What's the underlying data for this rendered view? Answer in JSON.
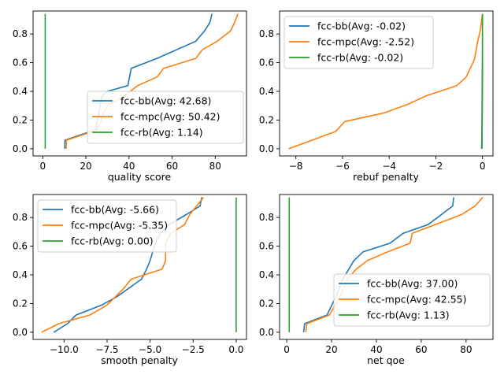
{
  "chart_data": [
    {
      "type": "line",
      "xlabel": "quality score",
      "xlim": [
        -4.5,
        94.5
      ],
      "ylim": [
        -0.05,
        0.96
      ],
      "xticks": [
        {
          "v": 0,
          "label": "0"
        },
        {
          "v": 20,
          "label": "20"
        },
        {
          "v": 40,
          "label": "40"
        },
        {
          "v": 60,
          "label": "60"
        },
        {
          "v": 80,
          "label": "80"
        }
      ],
      "yticks": [
        {
          "v": 0.0,
          "label": "0.0"
        },
        {
          "v": 0.2,
          "label": "0.2"
        },
        {
          "v": 0.4,
          "label": "0.4"
        },
        {
          "v": 0.6,
          "label": "0.6"
        },
        {
          "v": 0.8,
          "label": "0.8"
        }
      ],
      "legend": "lower-right",
      "series": [
        {
          "name": "fcc-bb(Avg: 42.68)",
          "color": "#1f77b4",
          "points": [
            [
              10.2,
              0.0
            ],
            [
              10.3,
              0.06
            ],
            [
              20,
              0.11
            ],
            [
              24.5,
              0.13
            ],
            [
              26,
              0.25
            ],
            [
              27.5,
              0.37
            ],
            [
              30,
              0.4
            ],
            [
              39.5,
              0.44
            ],
            [
              41,
              0.56
            ],
            [
              53,
              0.63
            ],
            [
              71,
              0.75
            ],
            [
              75,
              0.82
            ],
            [
              77.5,
              0.88
            ],
            [
              78.5,
              0.94
            ]
          ]
        },
        {
          "name": "fcc-mpc(Avg: 50.42)",
          "color": "#ff7f0e",
          "points": [
            [
              10.8,
              0.0
            ],
            [
              11,
              0.06
            ],
            [
              21,
              0.11
            ],
            [
              25,
              0.13
            ],
            [
              27,
              0.19
            ],
            [
              28,
              0.25
            ],
            [
              31,
              0.31
            ],
            [
              38,
              0.37
            ],
            [
              44,
              0.44
            ],
            [
              53,
              0.5
            ],
            [
              56,
              0.56
            ],
            [
              71,
              0.63
            ],
            [
              74,
              0.69
            ],
            [
              81,
              0.75
            ],
            [
              87,
              0.82
            ],
            [
              89,
              0.88
            ],
            [
              90.5,
              0.94
            ]
          ]
        },
        {
          "name": "fcc-rb(Avg: 1.14)",
          "color": "#2ca02c",
          "points": [
            [
              1.14,
              0.0
            ],
            [
              1.14,
              0.94
            ]
          ]
        }
      ]
    },
    {
      "type": "line",
      "xlabel": "rebuf penalty",
      "xlim": [
        -8.7,
        0.45
      ],
      "ylim": [
        -0.05,
        0.96
      ],
      "xticks": [
        {
          "v": -8,
          "label": "−8"
        },
        {
          "v": -6,
          "label": "−6"
        },
        {
          "v": -4,
          "label": "−4"
        },
        {
          "v": -2,
          "label": "−2"
        },
        {
          "v": 0,
          "label": "0"
        }
      ],
      "yticks": [
        {
          "v": 0.0,
          "label": "0.0"
        },
        {
          "v": 0.2,
          "label": "0.2"
        },
        {
          "v": 0.4,
          "label": "0.4"
        },
        {
          "v": 0.6,
          "label": "0.6"
        },
        {
          "v": 0.8,
          "label": "0.8"
        }
      ],
      "legend": "upper-left",
      "series": [
        {
          "name": "fcc-bb(Avg: -0.02)",
          "color": "#1f77b4",
          "points": [
            [
              -0.04,
              0.0
            ],
            [
              -0.03,
              0.06
            ],
            [
              -0.02,
              0.25
            ],
            [
              -0.01,
              0.5
            ],
            [
              0.0,
              0.75
            ],
            [
              0.0,
              0.94
            ]
          ]
        },
        {
          "name": "fcc-mpc(Avg: -2.52)",
          "color": "#ff7f0e",
          "points": [
            [
              -8.3,
              0.0
            ],
            [
              -6.3,
              0.12
            ],
            [
              -5.9,
              0.19
            ],
            [
              -4.2,
              0.25
            ],
            [
              -3.2,
              0.31
            ],
            [
              -2.4,
              0.37
            ],
            [
              -1.1,
              0.44
            ],
            [
              -0.7,
              0.5
            ],
            [
              -0.35,
              0.62
            ],
            [
              -0.2,
              0.75
            ],
            [
              -0.1,
              0.82
            ],
            [
              -0.05,
              0.88
            ],
            [
              0.0,
              0.94
            ]
          ]
        },
        {
          "name": "fcc-rb(Avg: -0.02)",
          "color": "#2ca02c",
          "points": [
            [
              -0.02,
              0.0
            ],
            [
              -0.02,
              0.06
            ],
            [
              -0.01,
              0.25
            ],
            [
              0.0,
              0.5
            ],
            [
              0.0,
              0.94
            ]
          ]
        }
      ]
    },
    {
      "type": "line",
      "xlabel": "smooth penalty",
      "xlim": [
        -11.8,
        0.6
      ],
      "ylim": [
        -0.05,
        0.96
      ],
      "xticks": [
        {
          "v": -10,
          "label": "−10.0"
        },
        {
          "v": -7.5,
          "label": "−7.5"
        },
        {
          "v": -5,
          "label": "−5.0"
        },
        {
          "v": -2.5,
          "label": "−2.5"
        },
        {
          "v": 0,
          "label": "0.0"
        }
      ],
      "yticks": [
        {
          "v": 0.0,
          "label": "0.0"
        },
        {
          "v": 0.2,
          "label": "0.2"
        },
        {
          "v": 0.4,
          "label": "0.4"
        },
        {
          "v": 0.6,
          "label": "0.6"
        },
        {
          "v": 0.8,
          "label": "0.8"
        }
      ],
      "legend": "upper-left",
      "series": [
        {
          "name": "fcc-bb(Avg: -5.66)",
          "color": "#1f77b4",
          "points": [
            [
              -10.6,
              0.0
            ],
            [
              -9.8,
              0.06
            ],
            [
              -9.3,
              0.12
            ],
            [
              -7.8,
              0.19
            ],
            [
              -6.9,
              0.25
            ],
            [
              -5.5,
              0.37
            ],
            [
              -5.2,
              0.44
            ],
            [
              -5.0,
              0.5
            ],
            [
              -4.7,
              0.62
            ],
            [
              -4.4,
              0.69
            ],
            [
              -3.9,
              0.75
            ],
            [
              -2.9,
              0.82
            ],
            [
              -2.1,
              0.88
            ],
            [
              -2.0,
              0.94
            ]
          ]
        },
        {
          "name": "fcc-mpc(Avg: -5.35)",
          "color": "#ff7f0e",
          "points": [
            [
              -11.3,
              0.0
            ],
            [
              -10.3,
              0.06
            ],
            [
              -8.5,
              0.12
            ],
            [
              -7.5,
              0.19
            ],
            [
              -6.5,
              0.31
            ],
            [
              -6.1,
              0.37
            ],
            [
              -4.3,
              0.44
            ],
            [
              -4.1,
              0.5
            ],
            [
              -4.1,
              0.62
            ],
            [
              -3.8,
              0.69
            ],
            [
              -3.0,
              0.75
            ],
            [
              -2.7,
              0.82
            ],
            [
              -2.3,
              0.88
            ],
            [
              -1.9,
              0.94
            ]
          ]
        },
        {
          "name": "fcc-rb(Avg: 0.00)",
          "color": "#2ca02c",
          "points": [
            [
              0.0,
              0.0
            ],
            [
              0.0,
              0.94
            ]
          ]
        }
      ]
    },
    {
      "type": "line",
      "xlabel": "net qoe",
      "xlim": [
        -3.2,
        92
      ],
      "ylim": [
        -0.05,
        0.96
      ],
      "xticks": [
        {
          "v": 0,
          "label": "0"
        },
        {
          "v": 20,
          "label": "20"
        },
        {
          "v": 40,
          "label": "40"
        },
        {
          "v": 60,
          "label": "60"
        },
        {
          "v": 80,
          "label": "80"
        }
      ],
      "yticks": [
        {
          "v": 0.0,
          "label": "0.0"
        },
        {
          "v": 0.2,
          "label": "0.2"
        },
        {
          "v": 0.4,
          "label": "0.4"
        },
        {
          "v": 0.6,
          "label": "0.6"
        },
        {
          "v": 0.8,
          "label": "0.8"
        }
      ],
      "legend": "lower-right",
      "series": [
        {
          "name": "fcc-bb(Avg: 37.00)",
          "color": "#1f77b4",
          "points": [
            [
              7.5,
              0.0
            ],
            [
              8,
              0.06
            ],
            [
              18,
              0.12
            ],
            [
              22,
              0.25
            ],
            [
              25,
              0.37
            ],
            [
              30,
              0.5
            ],
            [
              34,
              0.56
            ],
            [
              46,
              0.62
            ],
            [
              52,
              0.69
            ],
            [
              63,
              0.75
            ],
            [
              69,
              0.82
            ],
            [
              74,
              0.88
            ],
            [
              74.5,
              0.94
            ]
          ]
        },
        {
          "name": "fcc-mpc(Avg: 42.55)",
          "color": "#ff7f0e",
          "points": [
            [
              8.5,
              0.0
            ],
            [
              9,
              0.06
            ],
            [
              19,
              0.12
            ],
            [
              24,
              0.25
            ],
            [
              27,
              0.37
            ],
            [
              31,
              0.44
            ],
            [
              36,
              0.5
            ],
            [
              45,
              0.56
            ],
            [
              55,
              0.62
            ],
            [
              56,
              0.69
            ],
            [
              78,
              0.82
            ],
            [
              84,
              0.88
            ],
            [
              87.5,
              0.94
            ]
          ]
        },
        {
          "name": "fcc-rb(Avg: 1.13)",
          "color": "#2ca02c",
          "points": [
            [
              1.13,
              0.0
            ],
            [
              1.13,
              0.94
            ]
          ]
        }
      ]
    }
  ]
}
